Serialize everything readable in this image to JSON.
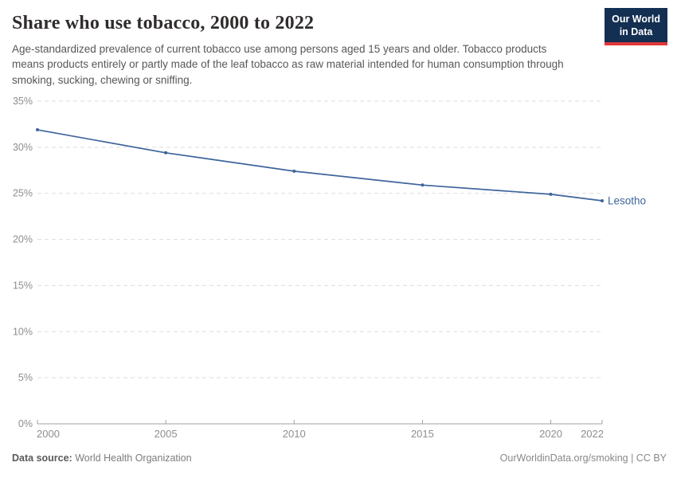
{
  "header": {
    "title": "Share who use tobacco, 2000 to 2022",
    "subtitle": "Age-standardized prevalence of current tobacco use among persons aged 15 years and older. Tobacco products means products entirely or partly made of the leaf tobacco as raw material intended for human consumption through smoking, sucking, chewing or sniffing.",
    "logo": {
      "line1": "Our World",
      "line2": "in Data",
      "bg_color": "#132f52",
      "bar_color": "#e0373a"
    }
  },
  "chart_data": {
    "type": "line",
    "title": "Share who use tobacco, 2000 to 2022",
    "xlabel": "",
    "ylabel": "",
    "x": [
      2000,
      2005,
      2010,
      2015,
      2020,
      2022
    ],
    "series": [
      {
        "name": "Lesotho",
        "color": "#3d649c",
        "values": [
          31.9,
          29.4,
          27.4,
          25.9,
          24.9,
          24.2
        ]
      }
    ],
    "end_label": "Lesotho",
    "xlim": [
      2000,
      2022
    ],
    "ylim": [
      0,
      35
    ],
    "x_ticks": [
      2000,
      2005,
      2010,
      2015,
      2020,
      2022
    ],
    "x_tick_labels": [
      "2000",
      "2005",
      "2010",
      "2015",
      "2020",
      "2022"
    ],
    "y_ticks": [
      0,
      5,
      10,
      15,
      20,
      25,
      30,
      35
    ],
    "y_tick_labels": [
      "0%",
      "5%",
      "10%",
      "15%",
      "20%",
      "25%",
      "30%",
      "35%"
    ],
    "grid": "horizontal-dashed",
    "grid_color": "#dedede",
    "axis_color": "#a1a1a1",
    "tick_label_color": "#8e8e8e",
    "legend_position": "end-of-line"
  },
  "footer": {
    "source_label": "Data source:",
    "source_value": " World Health Organization",
    "right_text": "OurWorldinData.org/smoking | CC BY"
  }
}
